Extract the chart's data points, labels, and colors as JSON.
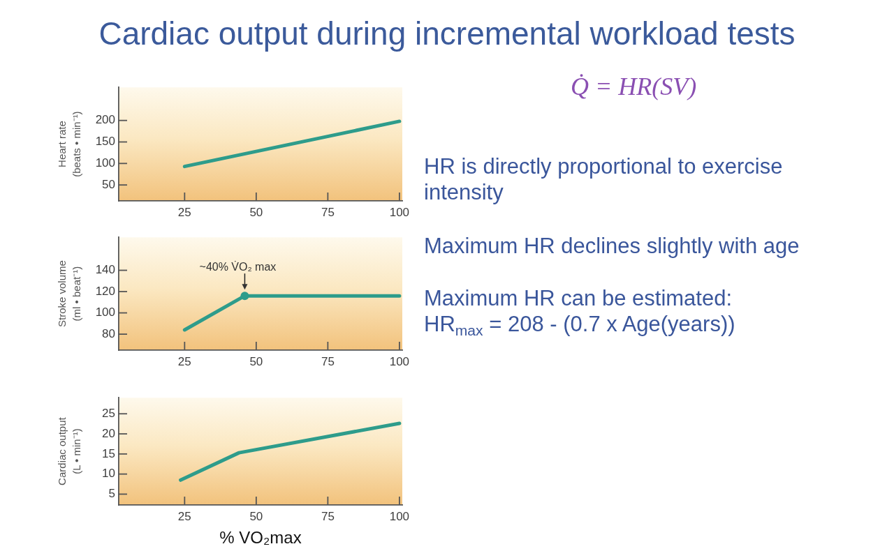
{
  "chart_data": [
    {
      "type": "line",
      "title": "Cardiac output during incremental workload tests",
      "ylabel": "Heart rate\n(beats • min⁻¹)",
      "x": [
        25,
        100
      ],
      "values": [
        93,
        198
      ],
      "color": "#2e9c8b",
      "xlim": [
        2,
        101
      ],
      "xticks": [
        25,
        50,
        75,
        100
      ],
      "ylim": [
        13,
        277
      ],
      "yticks": [
        50,
        100,
        150,
        200
      ],
      "grid": false,
      "legend": false
    },
    {
      "type": "line",
      "ylabel": "Stroke volume\n(ml • beat⁻¹)",
      "series": [
        {
          "type": "line",
          "x": [
            25,
            46,
            100
          ],
          "values": [
            84,
            116,
            116
          ],
          "color": "#2e9c8b"
        },
        {
          "type": "scatter",
          "x": [
            46
          ],
          "values": [
            116
          ],
          "color": "#2e9c8b",
          "marker": "circle"
        }
      ],
      "xlim": [
        2,
        101
      ],
      "xticks": [
        25,
        50,
        75,
        100
      ],
      "ylim": [
        65,
        171
      ],
      "yticks": [
        80,
        100,
        120,
        140
      ],
      "annotations": [
        {
          "text": "~40% V̇O₂ max",
          "x": 46,
          "y": 116
        }
      ],
      "grid": false,
      "legend": false
    },
    {
      "type": "line",
      "ylabel": "Cardiac output\n(L • min⁻¹)",
      "xlabel": "% VO₂max",
      "x": [
        23.6,
        44,
        100
      ],
      "values": [
        8.5,
        15.3,
        22.6
      ],
      "color": "#2e9c8b",
      "xlim": [
        2,
        101
      ],
      "xticks": [
        25,
        50,
        75,
        100
      ],
      "ylim": [
        2.3,
        29
      ],
      "yticks": [
        5,
        10,
        15,
        20,
        25
      ],
      "grid": false,
      "legend": false
    },
    {
      "type": "other",
      "annotations": [
        "Q̇ = HR(SV)",
        "HR is directly proportional to exercise intensity",
        "Maximum HR declines slightly with age",
        "Maximum HR can be estimated:",
        "HR$_{max}$ = 208 - (0.7 x Age(years))"
      ]
    }
  ]
}
